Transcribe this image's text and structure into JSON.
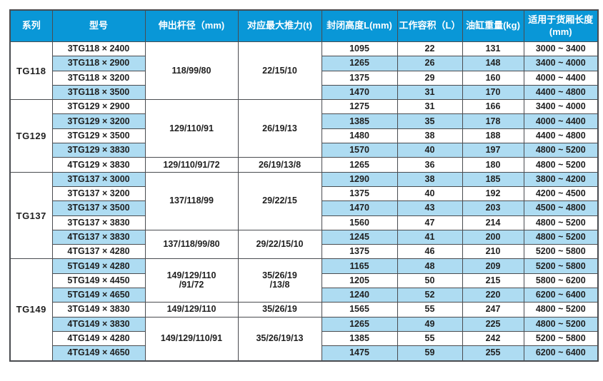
{
  "colors": {
    "header_bg": "#0997d7",
    "row_alt_bg": "#aedcf2",
    "border": "#4a4c50",
    "text": "#1f1f1f",
    "header_text": "#ffffff"
  },
  "table": {
    "headers": [
      "系列",
      "型号",
      "伸出杆径（mm)",
      "对应最大推力(t)",
      "封闭高度L(mm)",
      "工作容积（L）",
      "油缸重量(kg)",
      "适用于货厢长度(mm)"
    ],
    "groups": [
      {
        "series": "TG118",
        "spans": [
          {
            "rows": 4,
            "rod": "118/99/80",
            "thrust": "22/15/10"
          }
        ],
        "rows": [
          {
            "model": "3TG118 × 2400",
            "closed_height": "1095",
            "working_volume": "22",
            "cylinder_weight": "131",
            "box_length": "3000 ~ 3400"
          },
          {
            "model": "3TG118 × 2900",
            "closed_height": "1265",
            "working_volume": "26",
            "cylinder_weight": "148",
            "box_length": "3400 ~ 4000"
          },
          {
            "model": "3TG118 × 3200",
            "closed_height": "1375",
            "working_volume": "29",
            "cylinder_weight": "160",
            "box_length": "4000 ~ 4400"
          },
          {
            "model": "3TG118 × 3500",
            "closed_height": "1470",
            "working_volume": "31",
            "cylinder_weight": "170",
            "box_length": "4400 ~ 4800"
          }
        ]
      },
      {
        "series": "TG129",
        "spans": [
          {
            "rows": 4,
            "rod": "129/110/91",
            "thrust": "26/19/13"
          },
          {
            "rows": 1,
            "rod": "129/110/91/72",
            "thrust": "26/19/13/8"
          }
        ],
        "rows": [
          {
            "model": "3TG129 × 2900",
            "closed_height": "1275",
            "working_volume": "31",
            "cylinder_weight": "166",
            "box_length": "3400 ~ 4000"
          },
          {
            "model": "3TG129 × 3200",
            "closed_height": "1385",
            "working_volume": "35",
            "cylinder_weight": "178",
            "box_length": "4000 ~ 4400"
          },
          {
            "model": "3TG129 × 3500",
            "closed_height": "1480",
            "working_volume": "38",
            "cylinder_weight": "188",
            "box_length": "4400 ~ 4800"
          },
          {
            "model": "3TG129 × 3830",
            "closed_height": "1570",
            "working_volume": "40",
            "cylinder_weight": "197",
            "box_length": "4800 ~ 5200"
          },
          {
            "model": "4TG129 × 3830",
            "closed_height": "1265",
            "working_volume": "36",
            "cylinder_weight": "180",
            "box_length": "4800 ~ 5200"
          }
        ]
      },
      {
        "series": "TG137",
        "spans": [
          {
            "rows": 4,
            "rod": "137/118/99",
            "thrust": "29/22/15"
          },
          {
            "rows": 2,
            "rod": "137/118/99/80",
            "thrust": "29/22/15/10"
          }
        ],
        "rows": [
          {
            "model": "3TG137 × 3000",
            "closed_height": "1290",
            "working_volume": "38",
            "cylinder_weight": "185",
            "box_length": "3800 ~ 4200"
          },
          {
            "model": "3TG137 × 3200",
            "closed_height": "1375",
            "working_volume": "40",
            "cylinder_weight": "192",
            "box_length": "4200 ~ 4500"
          },
          {
            "model": "3TG137 × 3500",
            "closed_height": "1470",
            "working_volume": "43",
            "cylinder_weight": "203",
            "box_length": "4500 ~ 4800"
          },
          {
            "model": "3TG137 × 3830",
            "closed_height": "1560",
            "working_volume": "47",
            "cylinder_weight": "214",
            "box_length": "4800 ~ 5200"
          },
          {
            "model": "4TG137 × 3830",
            "closed_height": "1245",
            "working_volume": "41",
            "cylinder_weight": "200",
            "box_length": "4800 ~ 5200"
          },
          {
            "model": "4TG137 × 4280",
            "closed_height": "1375",
            "working_volume": "46",
            "cylinder_weight": "210",
            "box_length": "5200 ~ 5800"
          }
        ]
      },
      {
        "series": "TG149",
        "spans": [
          {
            "rows": 3,
            "rod": "149/129/110\n/91/72",
            "thrust": "35/26/19\n/13/8"
          },
          {
            "rows": 1,
            "rod": "149/129/110",
            "thrust": "35/26/19"
          },
          {
            "rows": 3,
            "rod": "149/129/110/91",
            "thrust": "35/26/19/13"
          }
        ],
        "rows": [
          {
            "model": "5TG149 × 4280",
            "closed_height": "1165",
            "working_volume": "48",
            "cylinder_weight": "209",
            "box_length": "5200 ~ 5800"
          },
          {
            "model": "5TG149 × 4450",
            "closed_height": "1205",
            "working_volume": "50",
            "cylinder_weight": "215",
            "box_length": "5800 ~ 6200"
          },
          {
            "model": "5TG149 × 4650",
            "closed_height": "1240",
            "working_volume": "52",
            "cylinder_weight": "220",
            "box_length": "6200 ~ 6400"
          },
          {
            "model": "3TG149 × 3830",
            "closed_height": "1565",
            "working_volume": "55",
            "cylinder_weight": "247",
            "box_length": "4800 ~ 5200"
          },
          {
            "model": "4TG149 × 3830",
            "closed_height": "1265",
            "working_volume": "49",
            "cylinder_weight": "225",
            "box_length": "4800 ~ 5200"
          },
          {
            "model": "4TG149 × 4280",
            "closed_height": "1385",
            "working_volume": "55",
            "cylinder_weight": "242",
            "box_length": "5200 ~ 5800"
          },
          {
            "model": "4TG149 × 4650",
            "closed_height": "1475",
            "working_volume": "59",
            "cylinder_weight": "255",
            "box_length": "6200 ~ 6400"
          }
        ]
      }
    ]
  }
}
